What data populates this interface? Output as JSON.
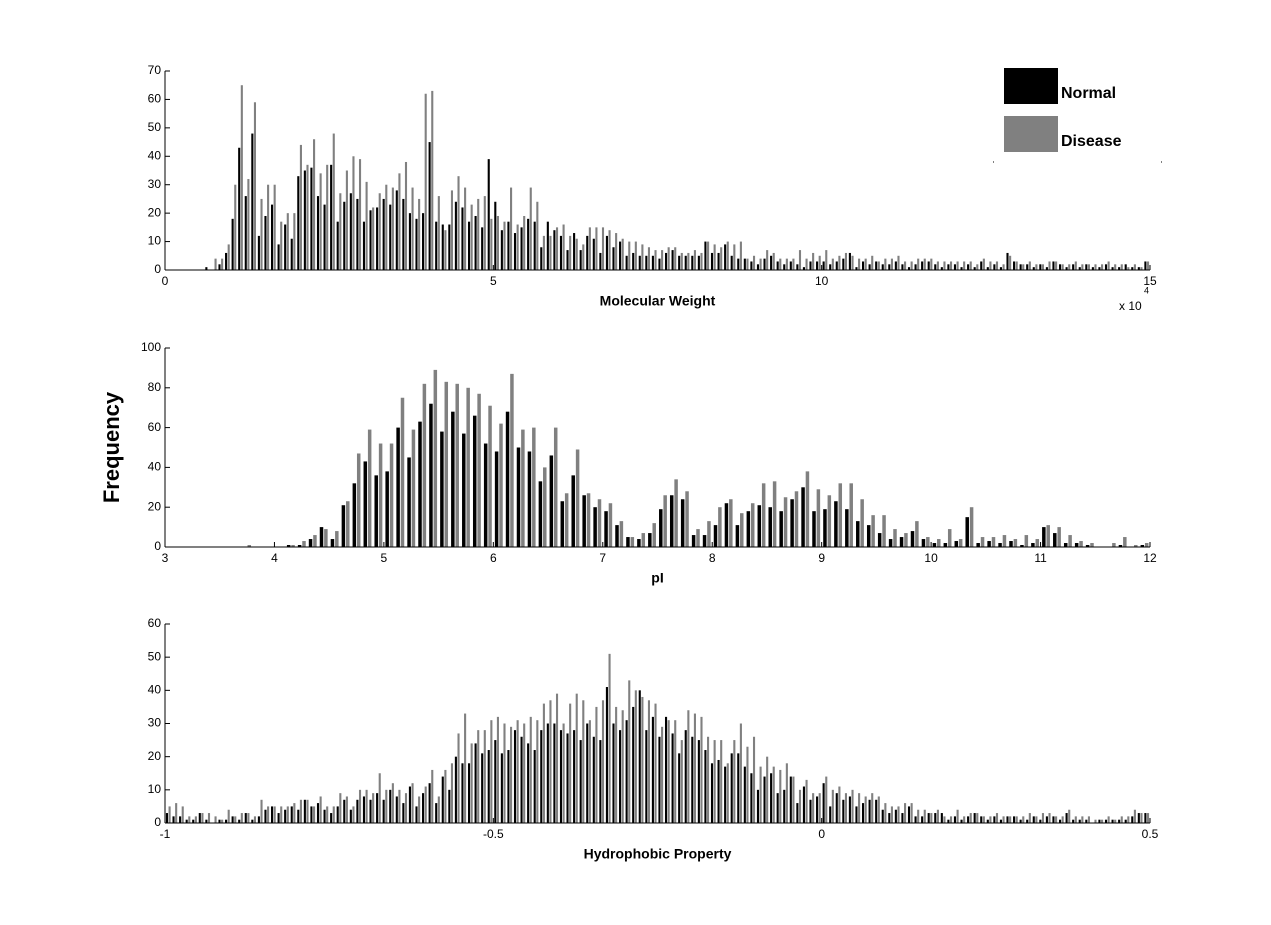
{
  "chart_data": [
    {
      "type": "histogram",
      "xlabel": "Molecular Weight",
      "x_multiplier": "x 10",
      "x_multiplier_exponent": "4",
      "xlim": [
        0,
        15
      ],
      "xticks": [
        0,
        5,
        10,
        15
      ],
      "ylim": [
        0,
        70
      ],
      "yticks": [
        0,
        10,
        20,
        30,
        40,
        50,
        60,
        70
      ],
      "legend": "upper right",
      "bins": [
        0,
        0.1,
        0.2,
        0.3,
        0.4,
        0.5,
        0.6,
        0.7,
        0.8,
        0.9,
        1,
        1.1,
        1.2,
        1.3,
        1.4,
        1.5,
        1.6,
        1.7,
        1.8,
        1.9,
        2,
        2.1,
        2.2,
        2.3,
        2.4,
        2.5,
        2.6,
        2.7,
        2.8,
        2.9,
        3,
        3.1,
        3.2,
        3.3,
        3.4,
        3.5,
        3.6,
        3.7,
        3.8,
        3.9,
        4,
        4.1,
        4.2,
        4.3,
        4.4,
        4.5,
        4.6,
        4.7,
        4.8,
        4.9,
        5,
        5.1,
        5.2,
        5.3,
        5.4,
        5.5,
        5.6,
        5.7,
        5.8,
        5.9,
        6,
        6.1,
        6.2,
        6.3,
        6.4,
        6.5,
        6.6,
        6.7,
        6.8,
        6.9,
        7,
        7.1,
        7.2,
        7.3,
        7.4,
        7.5,
        7.6,
        7.7,
        7.8,
        7.9,
        8,
        8.1,
        8.2,
        8.3,
        8.4,
        8.5,
        8.6,
        8.7,
        8.8,
        8.9,
        9,
        9.1,
        9.2,
        9.3,
        9.4,
        9.5,
        9.6,
        9.7,
        9.8,
        9.9,
        10,
        10.1,
        10.2,
        10.3,
        10.4,
        10.5,
        10.6,
        10.7,
        10.8,
        10.9,
        11,
        11.1,
        11.2,
        11.3,
        11.4,
        11.5,
        11.6,
        11.7,
        11.8,
        11.9,
        12,
        12.1,
        12.2,
        12.3,
        12.4,
        12.5,
        12.6,
        12.7,
        12.8,
        12.9,
        13,
        13.1,
        13.2,
        13.3,
        13.4,
        13.5,
        13.6,
        13.7,
        13.8,
        13.9,
        14,
        14.1,
        14.2,
        14.3,
        14.4,
        14.5,
        14.6,
        14.7,
        14.8,
        14.9,
        15
      ],
      "series": [
        {
          "name": "Normal",
          "color": "#000000",
          "values": [
            0,
            0,
            0,
            0,
            0,
            0,
            1,
            0,
            2,
            6,
            18,
            43,
            26,
            48,
            12,
            19,
            23,
            9,
            16,
            11,
            33,
            35,
            36,
            26,
            23,
            37,
            17,
            24,
            27,
            25,
            17,
            21,
            22,
            25,
            23,
            28,
            25,
            20,
            18,
            20,
            45,
            17,
            16,
            16,
            24,
            22,
            17,
            19,
            15,
            39,
            24,
            14,
            17,
            13,
            15,
            18,
            17,
            8,
            17,
            14,
            12,
            7,
            13,
            7,
            12,
            11,
            6,
            12,
            8,
            10,
            5,
            6,
            5,
            5,
            5,
            4,
            6,
            7,
            5,
            5,
            5,
            5,
            10,
            6,
            6,
            9,
            5,
            4,
            4,
            3,
            2,
            4,
            5,
            3,
            2,
            3,
            2,
            1,
            3,
            3,
            3,
            2,
            3,
            4,
            6,
            1,
            3,
            2,
            3,
            2,
            2,
            3,
            2,
            1,
            2,
            3,
            3,
            2,
            1,
            2,
            2,
            1,
            2,
            1,
            3,
            1,
            2,
            1,
            6,
            3,
            2,
            2,
            1,
            2,
            1,
            3,
            2,
            1,
            2,
            1,
            2,
            1,
            1,
            2,
            1,
            1,
            2,
            1,
            1,
            3
          ]
        },
        {
          "name": "Disease",
          "color": "#808080",
          "values": [
            0,
            0,
            0,
            0,
            0,
            0,
            0,
            4,
            4,
            9,
            30,
            65,
            32,
            59,
            25,
            30,
            30,
            17,
            20,
            20,
            44,
            37,
            46,
            34,
            37,
            48,
            27,
            35,
            40,
            39,
            31,
            22,
            27,
            30,
            29,
            34,
            38,
            29,
            25,
            62,
            63,
            26,
            14,
            28,
            33,
            29,
            23,
            25,
            26,
            18,
            19,
            17,
            29,
            16,
            19,
            29,
            24,
            12,
            12,
            15,
            16,
            12,
            11,
            9,
            15,
            15,
            15,
            14,
            13,
            11,
            10,
            10,
            9,
            8,
            7,
            7,
            8,
            8,
            6,
            6,
            7,
            6,
            10,
            9,
            8,
            10,
            9,
            10,
            4,
            5,
            4,
            7,
            6,
            4,
            4,
            4,
            7,
            4,
            6,
            5,
            7,
            4,
            5,
            6,
            5,
            4,
            4,
            5,
            3,
            4,
            4,
            5,
            3,
            3,
            4,
            4,
            4,
            3,
            3,
            3,
            3,
            3,
            3,
            2,
            4,
            3,
            3,
            2,
            5,
            3,
            2,
            3,
            2,
            2,
            3,
            3,
            2,
            2,
            3,
            2,
            2,
            2,
            2,
            3,
            2,
            2,
            1,
            2,
            1,
            3
          ]
        }
      ]
    },
    {
      "type": "histogram",
      "xlabel": "pI",
      "ylabel": "Frequency",
      "xlim": [
        3,
        12
      ],
      "xticks": [
        3,
        4,
        5,
        6,
        7,
        8,
        9,
        10,
        11,
        12
      ],
      "ylim": [
        0,
        100
      ],
      "yticks": [
        0,
        20,
        40,
        60,
        80,
        100
      ],
      "bins": [
        3,
        3.1,
        3.2,
        3.3,
        3.4,
        3.5,
        3.6,
        3.7,
        3.8,
        3.9,
        4,
        4.1,
        4.2,
        4.3,
        4.4,
        4.5,
        4.6,
        4.7,
        4.8,
        4.9,
        5,
        5.1,
        5.2,
        5.3,
        5.4,
        5.5,
        5.6,
        5.7,
        5.8,
        5.9,
        6,
        6.1,
        6.2,
        6.3,
        6.4,
        6.5,
        6.6,
        6.7,
        6.8,
        6.9,
        7,
        7.1,
        7.2,
        7.3,
        7.4,
        7.5,
        7.6,
        7.7,
        7.8,
        7.9,
        8,
        8.1,
        8.2,
        8.3,
        8.4,
        8.5,
        8.6,
        8.7,
        8.8,
        8.9,
        9,
        9.1,
        9.2,
        9.3,
        9.4,
        9.5,
        9.6,
        9.7,
        9.8,
        9.9,
        10,
        10.1,
        10.2,
        10.3,
        10.4,
        10.5,
        10.6,
        10.7,
        10.8,
        10.9,
        11,
        11.1,
        11.2,
        11.3,
        11.4,
        11.5,
        11.6,
        11.7,
        11.8,
        11.9,
        12
      ],
      "series": [
        {
          "name": "Normal",
          "color": "#000000",
          "values": [
            0,
            0,
            0,
            0,
            0,
            0,
            0,
            0,
            0,
            0,
            0,
            1,
            1,
            4,
            10,
            4,
            21,
            32,
            43,
            36,
            38,
            60,
            45,
            63,
            72,
            58,
            68,
            57,
            66,
            52,
            48,
            68,
            50,
            48,
            33,
            46,
            23,
            36,
            26,
            20,
            18,
            11,
            5,
            4,
            7,
            19,
            26,
            24,
            6,
            6,
            11,
            22,
            11,
            18,
            21,
            20,
            18,
            24,
            30,
            18,
            19,
            23,
            19,
            13,
            11,
            7,
            4,
            5,
            8,
            4,
            2,
            2,
            3,
            15,
            2,
            3,
            2,
            3,
            1,
            2,
            10,
            7,
            2,
            2,
            1,
            0,
            0,
            1,
            0,
            1
          ]
        },
        {
          "name": "Disease",
          "color": "#808080",
          "values": [
            0,
            0,
            0,
            0,
            0,
            0,
            0,
            1,
            0,
            0,
            0,
            1,
            3,
            6,
            9,
            8,
            23,
            47,
            59,
            52,
            52,
            75,
            59,
            82,
            89,
            83,
            82,
            80,
            77,
            71,
            62,
            87,
            59,
            60,
            40,
            60,
            27,
            49,
            27,
            24,
            22,
            13,
            5,
            7,
            12,
            26,
            34,
            28,
            9,
            13,
            20,
            24,
            17,
            22,
            32,
            33,
            25,
            28,
            38,
            29,
            26,
            32,
            32,
            24,
            16,
            16,
            9,
            7,
            13,
            5,
            4,
            9,
            4,
            20,
            5,
            5,
            6,
            4,
            6,
            4,
            11,
            10,
            6,
            3,
            2,
            0,
            2,
            5,
            1,
            2
          ]
        }
      ]
    },
    {
      "type": "histogram",
      "xlabel": "Hydrophobic Property",
      "xlim": [
        -1,
        0.5
      ],
      "xticks": [
        -1,
        -0.5,
        0,
        0.5
      ],
      "ylim": [
        0,
        60
      ],
      "yticks": [
        0,
        10,
        20,
        30,
        40,
        50,
        60
      ],
      "bins": [
        -1,
        -0.99,
        -0.98,
        -0.97,
        -0.96,
        -0.95,
        -0.94,
        -0.93,
        -0.92,
        -0.91,
        -0.9,
        -0.89,
        -0.88,
        -0.87,
        -0.86,
        -0.85,
        -0.84,
        -0.83,
        -0.82,
        -0.81,
        -0.8,
        -0.79,
        -0.78,
        -0.77,
        -0.76,
        -0.75,
        -0.74,
        -0.73,
        -0.72,
        -0.71,
        -0.7,
        -0.69,
        -0.68,
        -0.67,
        -0.66,
        -0.65,
        -0.64,
        -0.63,
        -0.62,
        -0.61,
        -0.6,
        -0.59,
        -0.58,
        -0.57,
        -0.56,
        -0.55,
        -0.54,
        -0.53,
        -0.52,
        -0.51,
        -0.5,
        -0.49,
        -0.48,
        -0.47,
        -0.46,
        -0.45,
        -0.44,
        -0.43,
        -0.42,
        -0.41,
        -0.4,
        -0.39,
        -0.38,
        -0.37,
        -0.36,
        -0.35,
        -0.34,
        -0.33,
        -0.32,
        -0.31,
        -0.3,
        -0.29,
        -0.28,
        -0.27,
        -0.26,
        -0.25,
        -0.24,
        -0.23,
        -0.22,
        -0.21,
        -0.2,
        -0.19,
        -0.18,
        -0.17,
        -0.16,
        -0.15,
        -0.14,
        -0.13,
        -0.12,
        -0.11,
        -0.1,
        -0.09,
        -0.08,
        -0.07,
        -0.06,
        -0.05,
        -0.04,
        -0.03,
        -0.02,
        -0.01,
        0,
        0.01,
        0.02,
        0.03,
        0.04,
        0.05,
        0.06,
        0.07,
        0.08,
        0.09,
        0.1,
        0.11,
        0.12,
        0.13,
        0.14,
        0.15,
        0.16,
        0.17,
        0.18,
        0.19,
        0.2,
        0.21,
        0.22,
        0.23,
        0.24,
        0.25,
        0.26,
        0.27,
        0.28,
        0.29,
        0.3,
        0.31,
        0.32,
        0.33,
        0.34,
        0.35,
        0.36,
        0.37,
        0.38,
        0.39,
        0.4,
        0.41,
        0.42,
        0.43,
        0.44,
        0.45,
        0.46,
        0.47,
        0.48,
        0.49,
        0.5
      ],
      "series": [
        {
          "name": "Normal",
          "color": "#000000",
          "values": [
            3,
            2,
            2,
            1,
            1,
            3,
            1,
            0,
            1,
            1,
            2,
            1,
            3,
            1,
            2,
            4,
            5,
            3,
            4,
            5,
            4,
            7,
            5,
            6,
            4,
            3,
            5,
            7,
            4,
            7,
            8,
            7,
            9,
            7,
            10,
            8,
            6,
            11,
            5,
            9,
            12,
            6,
            14,
            10,
            20,
            18,
            18,
            24,
            21,
            22,
            25,
            21,
            22,
            28,
            26,
            24,
            22,
            28,
            30,
            30,
            28,
            27,
            28,
            25,
            30,
            26,
            25,
            41,
            30,
            28,
            31,
            35,
            40,
            28,
            32,
            26,
            32,
            27,
            21,
            28,
            26,
            25,
            22,
            18,
            19,
            17,
            21,
            21,
            17,
            15,
            10,
            14,
            15,
            9,
            10,
            14,
            6,
            11,
            7,
            8,
            12,
            5,
            9,
            7,
            8,
            5,
            6,
            7,
            7,
            4,
            3,
            4,
            3,
            5,
            2,
            2,
            3,
            3,
            3,
            1,
            2,
            1,
            2,
            3,
            2,
            1,
            2,
            1,
            2,
            2,
            1,
            1,
            2,
            1,
            2,
            2,
            1,
            3,
            1,
            1,
            1,
            0,
            1,
            1,
            1,
            1,
            1,
            2,
            3,
            3
          ]
        },
        {
          "name": "Disease",
          "color": "#808080",
          "values": [
            5,
            6,
            5,
            2,
            2,
            3,
            3,
            2,
            1,
            4,
            2,
            3,
            3,
            2,
            7,
            5,
            5,
            5,
            5,
            6,
            7,
            7,
            5,
            8,
            5,
            5,
            9,
            8,
            5,
            10,
            10,
            9,
            15,
            10,
            12,
            10,
            9,
            12,
            8,
            11,
            16,
            8,
            16,
            18,
            27,
            33,
            24,
            28,
            28,
            31,
            32,
            30,
            29,
            31,
            30,
            32,
            31,
            36,
            37,
            39,
            30,
            36,
            39,
            37,
            31,
            35,
            37,
            51,
            35,
            34,
            43,
            40,
            38,
            37,
            36,
            29,
            31,
            31,
            25,
            34,
            33,
            32,
            26,
            25,
            25,
            18,
            25,
            30,
            23,
            26,
            17,
            20,
            17,
            16,
            18,
            14,
            10,
            13,
            9,
            9,
            14,
            10,
            11,
            9,
            10,
            9,
            8,
            9,
            8,
            6,
            5,
            5,
            6,
            6,
            4,
            4,
            3,
            4,
            2,
            2,
            4,
            2,
            3,
            3,
            2,
            2,
            3,
            2,
            2,
            2,
            2,
            3,
            2,
            3,
            3,
            2,
            2,
            4,
            2,
            2,
            2,
            1,
            1,
            2,
            1,
            2,
            2,
            4,
            3,
            3
          ]
        }
      ]
    }
  ]
}
